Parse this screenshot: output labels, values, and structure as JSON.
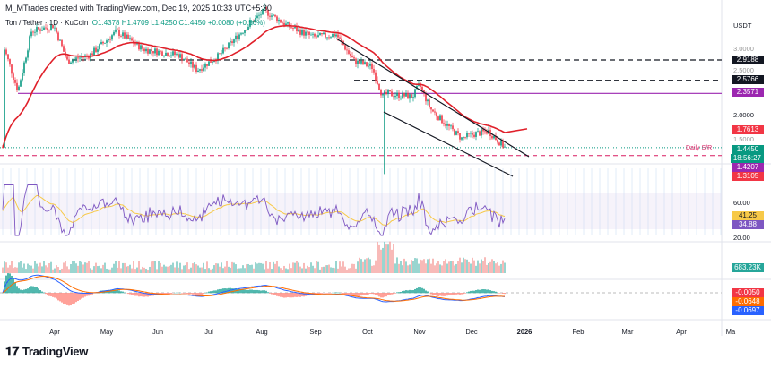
{
  "header": {
    "author_line": "M_MTrades created with TradingView.com, Dec 19, 2025 10:33 UTC+5:30",
    "symbol": "Ton / Tether · 1D · KuCoin",
    "open": "O1.4378",
    "high": "H1.4709",
    "low": "L1.4250",
    "close": "C1.4450",
    "change": "+0.0080 (+0.56%)"
  },
  "price_axis": {
    "currency": "USDT",
    "ticks": [
      "3.0000",
      "2.5000",
      "2.0000",
      "1.5000"
    ],
    "tags": [
      {
        "value": "2.9188",
        "color": "#131722"
      },
      {
        "value": "2.5766",
        "color": "#131722"
      },
      {
        "value": "2.3571",
        "color": "#9c27b0"
      },
      {
        "value": "1.7613",
        "color": "#f23645"
      },
      {
        "value": "1.4450",
        "color": "#089981"
      },
      {
        "value": "18:56:27",
        "color": "#089981"
      },
      {
        "value": "1.4207",
        "color": "#9c27b0"
      },
      {
        "value": "1.3105",
        "color": "#f23645"
      }
    ]
  },
  "annotation": {
    "daily_sr": "Daily S/R"
  },
  "rsi": {
    "ticks": [
      "60.00",
      "20.00"
    ],
    "rsi_value": "41.25",
    "ma_value": "34.88",
    "rsi_color": "#7e57c2",
    "ma_color": "#f7c948"
  },
  "volume": {
    "value": "683.23K",
    "color": "#26a69a"
  },
  "macd": {
    "histogram": "-0.0050",
    "signal": "-0.0648",
    "macd": "-0.0697"
  },
  "time_axis": [
    "Apr",
    "May",
    "Jun",
    "Jul",
    "Aug",
    "Sep",
    "Oct",
    "Nov",
    "Dec",
    "2026",
    "Feb",
    "Mar",
    "Apr",
    "Ma"
  ],
  "brand": "TradingView"
}
